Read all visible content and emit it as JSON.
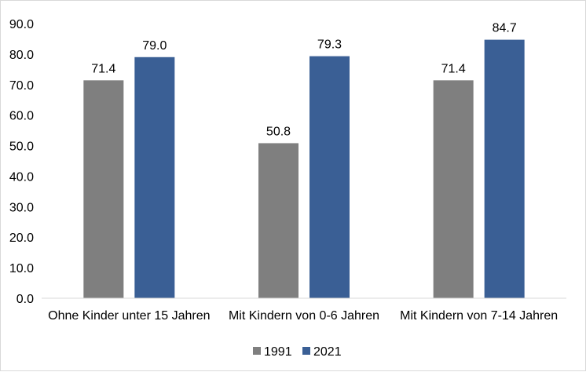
{
  "chart_data": {
    "type": "bar",
    "categories": [
      "Ohne Kinder unter 15 Jahren",
      "Mit Kindern von 0-6 Jahren",
      "Mit Kindern von 7-14 Jahren"
    ],
    "series": [
      {
        "name": "1991",
        "values": [
          71.4,
          50.8,
          71.4
        ],
        "labels": [
          "71.4",
          "50.8",
          "71.4"
        ],
        "color": "#7f7f7f"
      },
      {
        "name": "2021",
        "values": [
          79.0,
          79.3,
          84.7
        ],
        "labels": [
          "79.0",
          "79.3",
          "84.7"
        ],
        "color": "#3a5f95"
      }
    ],
    "yticks": [
      "0.0",
      "10.0",
      "20.0",
      "30.0",
      "40.0",
      "50.0",
      "60.0",
      "70.0",
      "80.0",
      "90.0"
    ],
    "ylim": [
      0,
      90
    ],
    "grid": false,
    "legend_position": "bottom"
  }
}
